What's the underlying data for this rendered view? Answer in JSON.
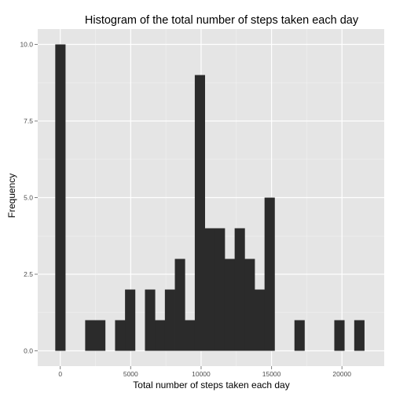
{
  "chart_data": {
    "type": "bar",
    "title": "Histogram of the total number of steps taken each day",
    "xlabel": "Total number of steps taken each day",
    "ylabel": "Frequency",
    "xlim": [
      -1600,
      23000
    ],
    "ylim": [
      -0.5,
      10.5
    ],
    "x_ticks": [
      0,
      5000,
      10000,
      15000,
      20000
    ],
    "x_tick_labels": [
      "0",
      "5000",
      "10000",
      "15000",
      "20000"
    ],
    "y_ticks": [
      0,
      2.5,
      5,
      7.5,
      10
    ],
    "y_tick_labels": [
      "0.0",
      "2.5",
      "5.0",
      "7.5",
      "10.0"
    ],
    "bin_width": 707.5,
    "bins": [
      {
        "x": 0,
        "count": 10
      },
      {
        "x": 707.5,
        "count": 0
      },
      {
        "x": 1415,
        "count": 0
      },
      {
        "x": 2122.5,
        "count": 1
      },
      {
        "x": 2830,
        "count": 1
      },
      {
        "x": 3537.5,
        "count": 0
      },
      {
        "x": 4245,
        "count": 1
      },
      {
        "x": 4952.5,
        "count": 2
      },
      {
        "x": 5660,
        "count": 0
      },
      {
        "x": 6367.5,
        "count": 2
      },
      {
        "x": 7075,
        "count": 1
      },
      {
        "x": 7782.5,
        "count": 2
      },
      {
        "x": 8490,
        "count": 3
      },
      {
        "x": 9197.5,
        "count": 1
      },
      {
        "x": 9905,
        "count": 9
      },
      {
        "x": 10612.5,
        "count": 4
      },
      {
        "x": 11320,
        "count": 4
      },
      {
        "x": 12027.5,
        "count": 3
      },
      {
        "x": 12735,
        "count": 4
      },
      {
        "x": 13442.5,
        "count": 3
      },
      {
        "x": 14150,
        "count": 2
      },
      {
        "x": 14857.5,
        "count": 5
      },
      {
        "x": 15565,
        "count": 0
      },
      {
        "x": 16272.5,
        "count": 0
      },
      {
        "x": 16980,
        "count": 1
      },
      {
        "x": 17687.5,
        "count": 0
      },
      {
        "x": 18395,
        "count": 0
      },
      {
        "x": 19102.5,
        "count": 0
      },
      {
        "x": 19810,
        "count": 1
      },
      {
        "x": 20517.5,
        "count": 0
      },
      {
        "x": 21225,
        "count": 1
      }
    ],
    "colors": {
      "panel": "#e5e5e5",
      "grid_major": "#ffffff",
      "grid_minor": "#f2f2f2",
      "bar": "#2b2b2b",
      "tick": "#7f7f7f"
    },
    "grid": true,
    "legend": "none"
  }
}
